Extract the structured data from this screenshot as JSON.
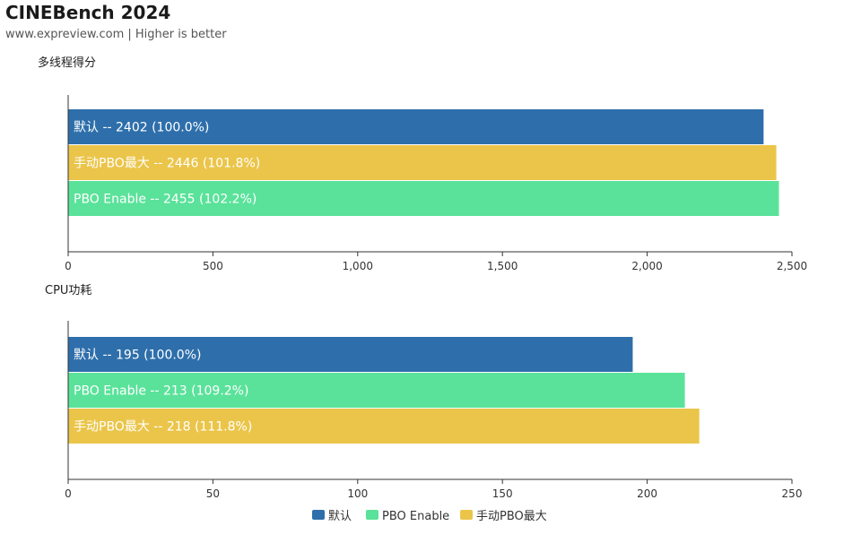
{
  "header": {
    "title": "CINEBench 2024",
    "subtitle": "www.expreview.com | Higher is better"
  },
  "colors": {
    "default": "#2e6fab",
    "pbo_enable": "#5ae29a",
    "pbo_max": "#ebc54a"
  },
  "legend": {
    "placement": "bottom-center",
    "items": [
      {
        "label": "默认",
        "color": "#2e6fab"
      },
      {
        "label": "PBO Enable",
        "color": "#5ae29a"
      },
      {
        "label": "手动PBO最大",
        "color": "#ebc54a"
      }
    ]
  },
  "chart_data": [
    {
      "type": "bar",
      "orientation": "horizontal",
      "title": "多线程得分",
      "xlim": [
        0,
        2500
      ],
      "ticks": [
        0,
        500,
        1000,
        1500,
        2000,
        2500
      ],
      "tick_labels": [
        "0",
        "500",
        "1,000",
        "1,500",
        "2,000",
        "2,500"
      ],
      "bars": [
        {
          "series": "默认",
          "value": 2402,
          "label": "默认  --  2402 (100.0%)",
          "color": "#2e6fab"
        },
        {
          "series": "手动PBO最大",
          "value": 2446,
          "label": "手动PBO最大  --  2446 (101.8%)",
          "color": "#ebc54a"
        },
        {
          "series": "PBO Enable",
          "value": 2455,
          "label": "PBO Enable  --  2455 (102.2%)",
          "color": "#5ae29a"
        }
      ]
    },
    {
      "type": "bar",
      "orientation": "horizontal",
      "title": "CPU功耗",
      "xlim": [
        0,
        250
      ],
      "ticks": [
        0,
        50,
        100,
        150,
        200,
        250
      ],
      "tick_labels": [
        "0",
        "50",
        "100",
        "150",
        "200",
        "250"
      ],
      "bars": [
        {
          "series": "默认",
          "value": 195,
          "label": "默认  --  195 (100.0%)",
          "color": "#2e6fab"
        },
        {
          "series": "PBO Enable",
          "value": 213,
          "label": "PBO Enable  --  213 (109.2%)",
          "color": "#5ae29a"
        },
        {
          "series": "手动PBO最大",
          "value": 218,
          "label": "手动PBO最大  --  218 (111.8%)",
          "color": "#ebc54a"
        }
      ]
    }
  ]
}
